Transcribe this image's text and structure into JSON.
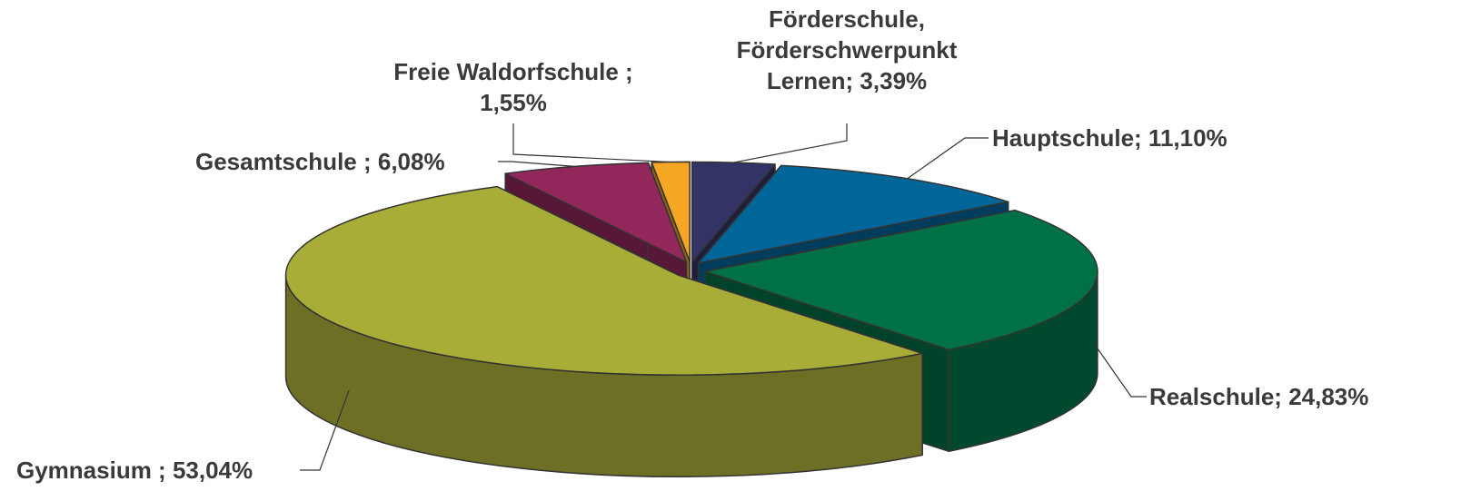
{
  "chart_data": {
    "type": "pie3d",
    "categories": [
      "Förderschule, Förderschwerpunkt Lernen;",
      "Hauptschule;",
      "Realschule;",
      "Gymnasium ;",
      "Gesamtschule ;",
      "Freie Waldorfschule ;"
    ],
    "values": [
      3.39,
      11.1,
      24.83,
      53.04,
      6.08,
      1.55
    ],
    "value_labels": [
      "3,39%",
      "11,10%",
      "24,83%",
      "53,04%",
      "6,08%",
      "1,55%"
    ],
    "colors": [
      "#333366",
      "#006699",
      "#007046",
      "#a8ad38",
      "#92275c",
      "#f5a623"
    ]
  }
}
